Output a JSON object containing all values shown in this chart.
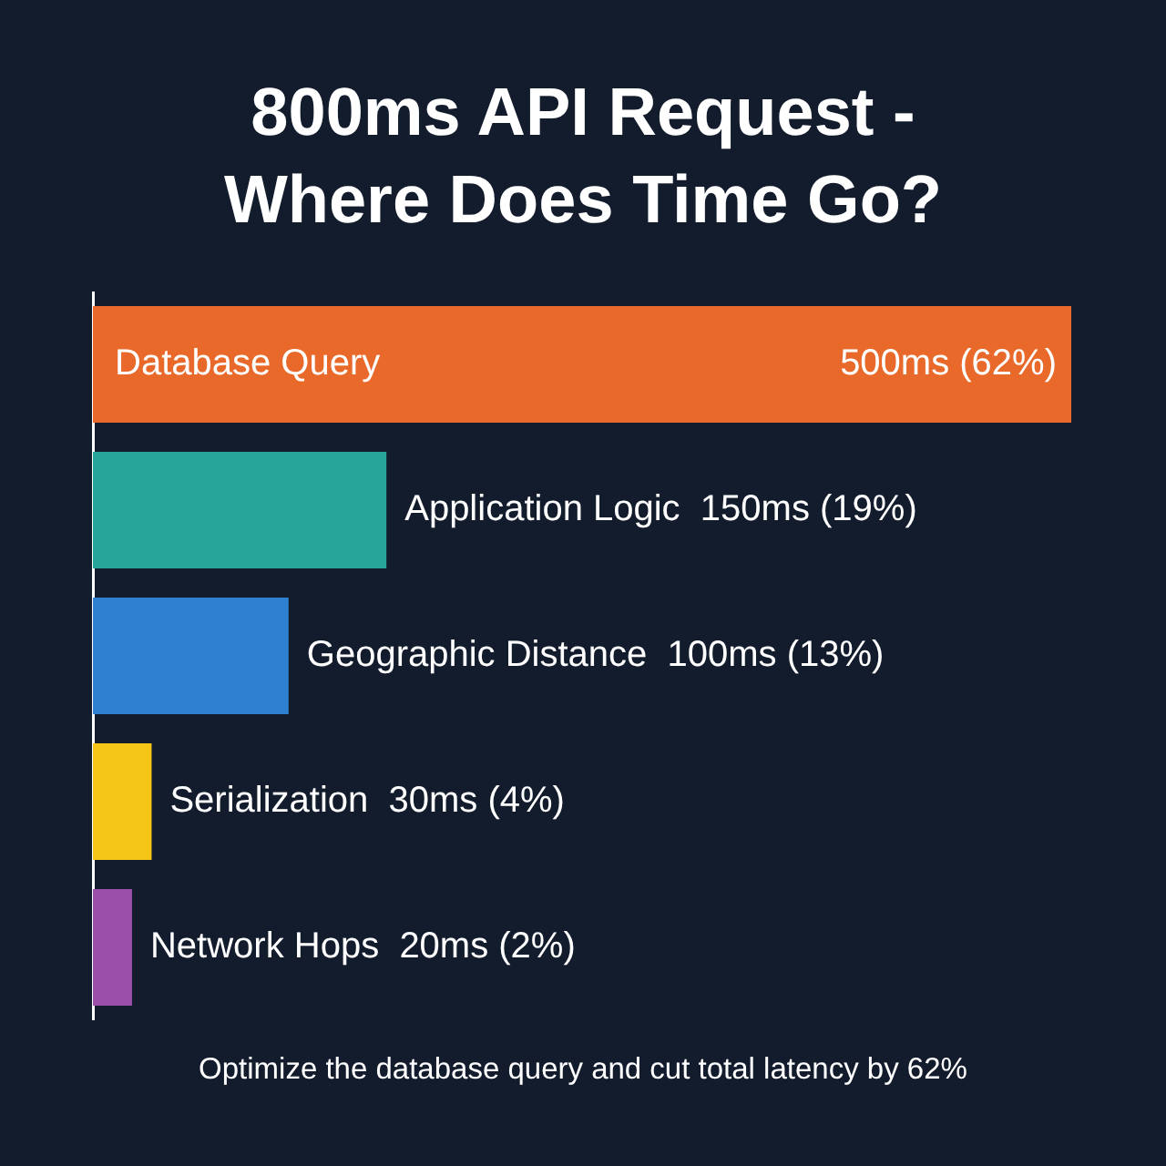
{
  "chart_data": {
    "type": "bar",
    "orientation": "horizontal",
    "title": "800ms API Request - Where Does Time Go?",
    "categories": [
      "Database Query",
      "Application Logic",
      "Geographic Distance",
      "Serialization",
      "Network Hops"
    ],
    "values": [
      500,
      150,
      100,
      30,
      20
    ],
    "colors": [
      "#e8692a",
      "#26a69a",
      "#2f80d0",
      "#f5c518",
      "#9b4fa8"
    ],
    "value_labels": [
      "500ms (62%)",
      "150ms (19%)",
      "100ms (13%)",
      "30ms (4%)",
      "20ms (2%)"
    ],
    "xlim": [
      0,
      500
    ],
    "tick_labels": false,
    "annotations": [
      "Optimize the database query and cut total latency by 62%"
    ]
  }
}
